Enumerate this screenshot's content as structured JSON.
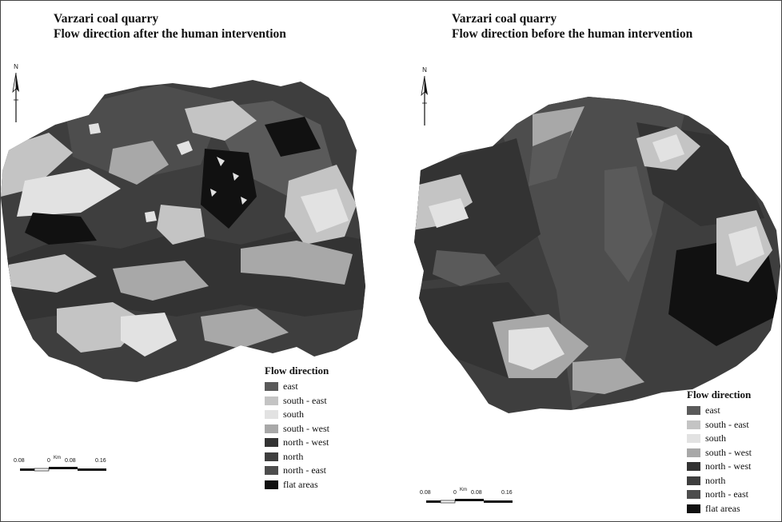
{
  "maps": [
    {
      "title_line1": "Varzari coal quarry",
      "title_line2": "Flow direction after the human intervention",
      "north_label": "N",
      "legend_title": "Flow direction",
      "scale": {
        "ticks": [
          "0.08",
          "0",
          "0.08",
          "0.16"
        ],
        "unit": "Km"
      }
    },
    {
      "title_line1": "Varzari coal quarry",
      "title_line2": "Flow direction before the human intervention",
      "north_label": "N",
      "legend_title": "Flow direction",
      "scale": {
        "ticks": [
          "0.08",
          "0",
          "0.08",
          "0.16"
        ],
        "unit": "Km"
      }
    }
  ],
  "legend_classes": [
    {
      "label": "east",
      "color": "#5a5a5a"
    },
    {
      "label": "south - east",
      "color": "#c4c4c4"
    },
    {
      "label": "south",
      "color": "#e2e2e2"
    },
    {
      "label": "south - west",
      "color": "#a8a8a8"
    },
    {
      "label": "north - west",
      "color": "#333333"
    },
    {
      "label": "north",
      "color": "#3e3e3e"
    },
    {
      "label": "north - east",
      "color": "#4d4d4d"
    },
    {
      "label": "flat areas",
      "color": "#111111"
    }
  ]
}
